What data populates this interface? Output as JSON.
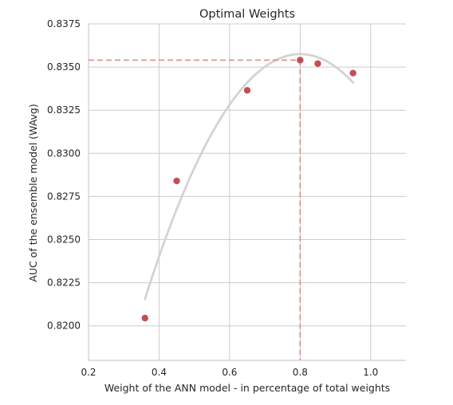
{
  "colors": {
    "grid": "#cccccc",
    "points": "#c44e52",
    "fit_curve": "#d3d3d3",
    "reference_lines": "#d98c8c",
    "spine": "#cccccc",
    "text": "#262626"
  },
  "chart_data": {
    "type": "scatter",
    "title": "Optimal Weights",
    "xlabel": "Weight of the ANN model - in percentage of total weights",
    "ylabel": "AUC of the ensemble model (WAvg)",
    "xlim": [
      0.2,
      1.1
    ],
    "ylim": [
      0.818,
      0.8375
    ],
    "xticks": [
      "0.2",
      "0.4",
      "0.6",
      "0.8",
      "1.0"
    ],
    "yticks": [
      "0.8200",
      "0.8225",
      "0.8250",
      "0.8275",
      "0.8300",
      "0.8325",
      "0.8350",
      "0.8375"
    ],
    "grid": true,
    "points": [
      {
        "x": 0.36,
        "y": 0.82045
      },
      {
        "x": 0.45,
        "y": 0.8284
      },
      {
        "x": 0.65,
        "y": 0.83365
      },
      {
        "x": 0.8,
        "y": 0.8354
      },
      {
        "x": 0.85,
        "y": 0.8352
      },
      {
        "x": 0.95,
        "y": 0.83465
      }
    ],
    "fit_curve": {
      "type": "quadratic",
      "x_range": [
        0.36,
        0.95
      ],
      "peak_x": 0.8,
      "peak_y": 0.83575,
      "y_at_start": 0.82155
    },
    "optimum": {
      "x": 0.8,
      "y": 0.8354
    }
  }
}
